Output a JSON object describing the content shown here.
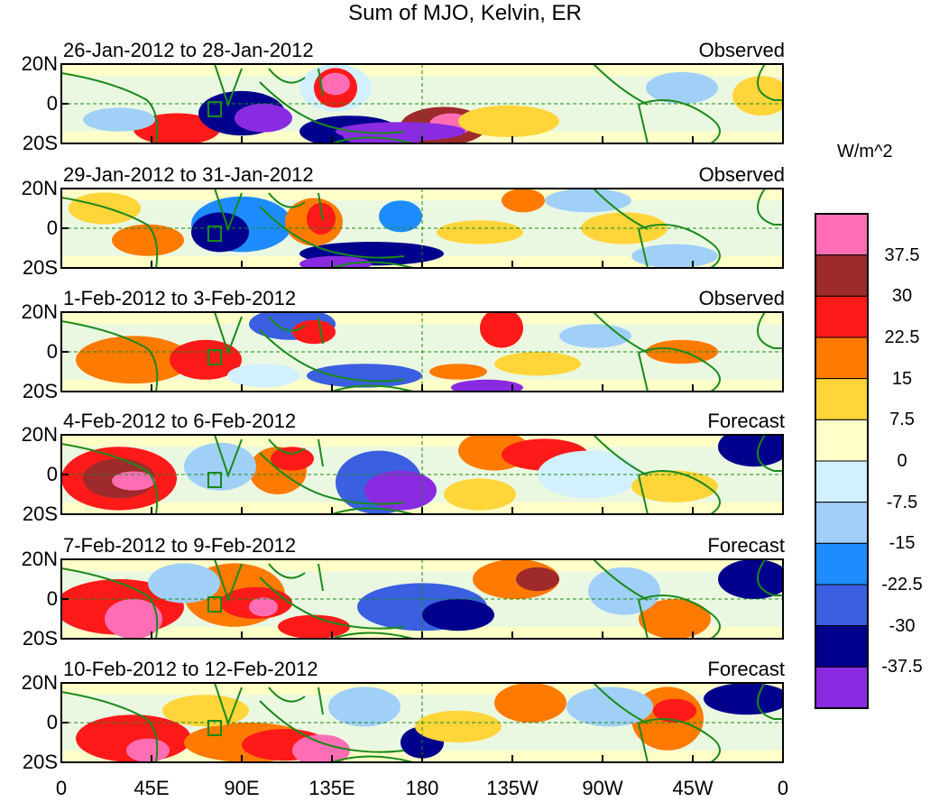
{
  "title": "Sum of MJO, Kelvin, ER",
  "panels": [
    {
      "dates": "26-Jan-2012 to 28-Jan-2012",
      "status": "Observed"
    },
    {
      "dates": "29-Jan-2012 to 31-Jan-2012",
      "status": "Observed"
    },
    {
      "dates": "1-Feb-2012 to 3-Feb-2012",
      "status": "Observed"
    },
    {
      "dates": "4-Feb-2012 to 6-Feb-2012",
      "status": "Forecast"
    },
    {
      "dates": "7-Feb-2012 to 9-Feb-2012",
      "status": "Forecast"
    },
    {
      "dates": "10-Feb-2012 to 12-Feb-2012",
      "status": "Forecast"
    }
  ],
  "y_ticks": [
    "20N",
    "0",
    "20S"
  ],
  "x_ticks": [
    "0",
    "45E",
    "90E",
    "135E",
    "180",
    "135W",
    "90W",
    "45W",
    "0"
  ],
  "colorbar": {
    "unit": "W/m^2",
    "labels": [
      "37.5",
      "30",
      "22.5",
      "15",
      "7.5",
      "0",
      "-7.5",
      "-15",
      "-22.5",
      "-30",
      "-37.5"
    ],
    "colors": [
      "#ff6eb4",
      "#9e2a2b",
      "#ff1a1a",
      "#ff7a00",
      "#ffd53a",
      "#ffffc8",
      "#d2f0ff",
      "#a0d0f8",
      "#1e8cff",
      "#3a5fe0",
      "#00008c",
      "#8a2be2"
    ]
  },
  "lines": {
    "land": "#1a8a1a",
    "reference": "#1a8a1a"
  }
}
